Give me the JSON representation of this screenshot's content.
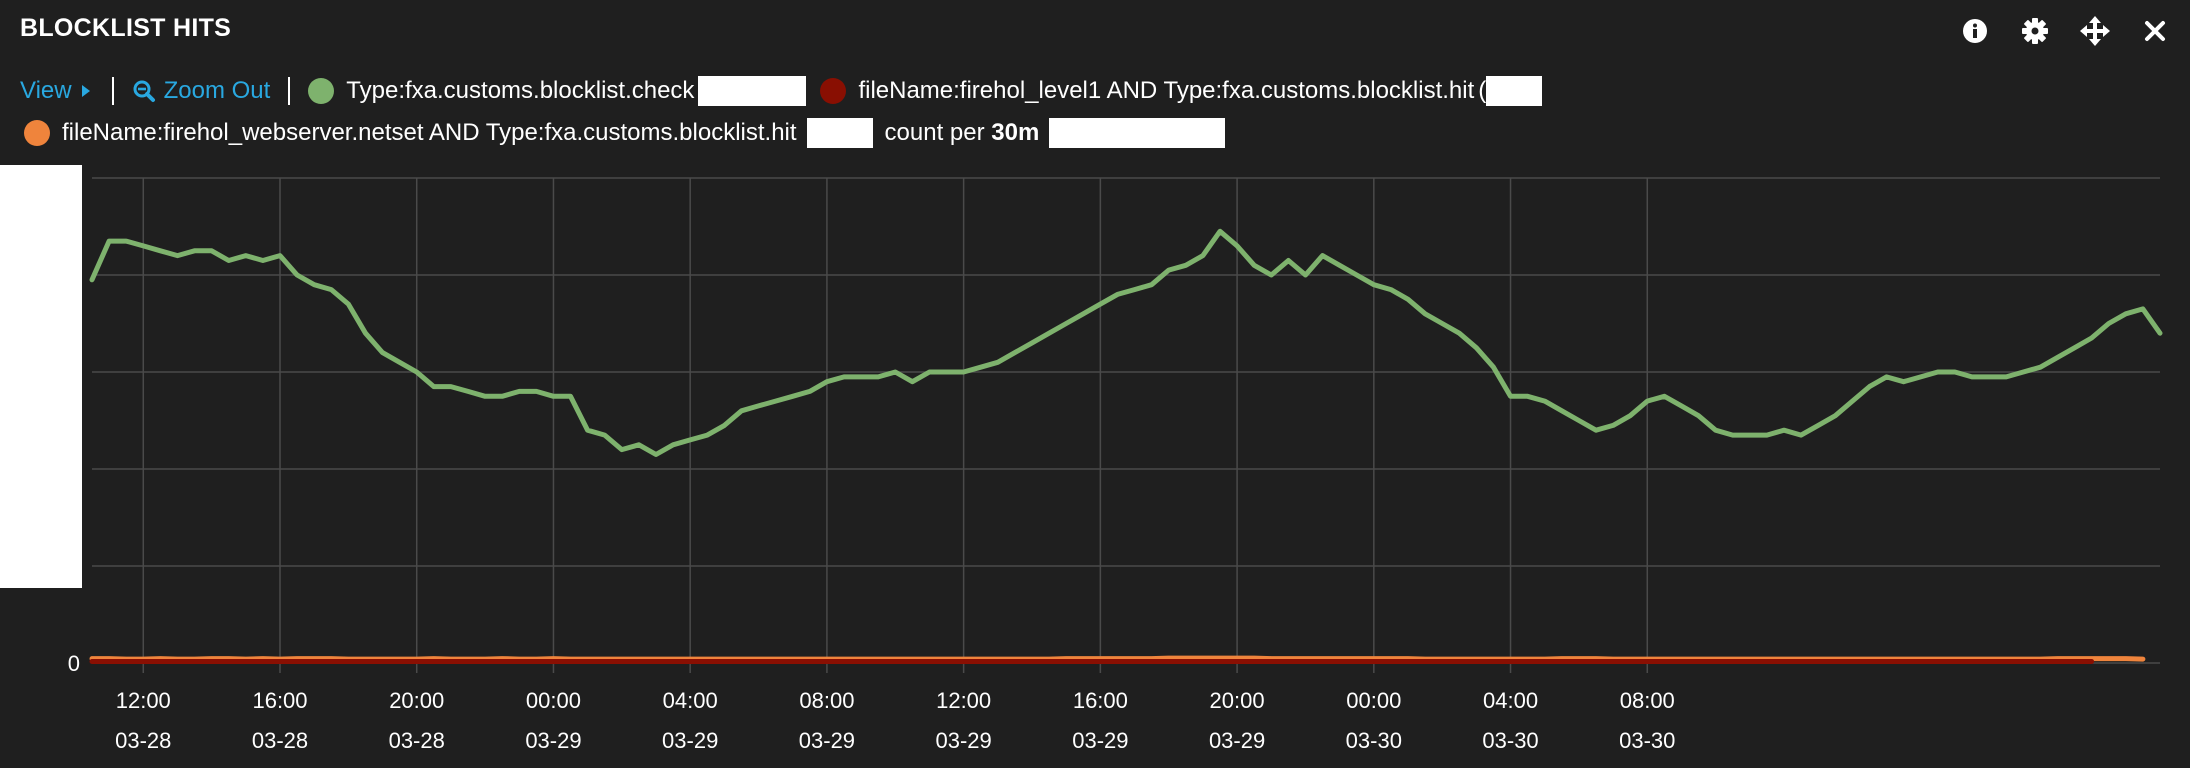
{
  "panel": {
    "title": "BLOCKLIST HITS",
    "icons": [
      "info-icon",
      "gear-icon",
      "move-icon",
      "close-icon"
    ]
  },
  "toolbar": {
    "view_label": "View",
    "zoom_out_label": "Zoom Out",
    "count_per_prefix": "count per",
    "count_per_value": "30m"
  },
  "legend": [
    {
      "label": "Type:fxa.customs.blocklist.check",
      "color": "#7eb26d"
    },
    {
      "label": "fileName:firehol_level1 AND Type:fxa.customs.blocklist.hit",
      "color": "#890f02"
    },
    {
      "label": "fileName:firehol_webserver.netset AND Type:fxa.customs.blocklist.hit",
      "color": "#ef843c"
    }
  ],
  "chart_data": {
    "type": "line",
    "x_tick_labels": [
      [
        "12:00",
        "03-28"
      ],
      [
        "16:00",
        "03-28"
      ],
      [
        "20:00",
        "03-28"
      ],
      [
        "00:00",
        "03-29"
      ],
      [
        "04:00",
        "03-29"
      ],
      [
        "08:00",
        "03-29"
      ],
      [
        "12:00",
        "03-29"
      ],
      [
        "16:00",
        "03-29"
      ],
      [
        "20:00",
        "03-29"
      ],
      [
        "00:00",
        "03-30"
      ],
      [
        "04:00",
        "03-30"
      ],
      [
        "08:00",
        "03-30"
      ]
    ],
    "x_start": "2025-03-28T10:30",
    "interval": "30m",
    "y_tick_labels": [
      "0"
    ],
    "ylim": [
      0,
      100
    ],
    "grid": true,
    "series": [
      {
        "name": "Type:fxa.customs.blocklist.check",
        "color": "#7eb26d",
        "values": [
          79,
          87,
          87,
          86,
          85,
          84,
          85,
          85,
          83,
          84,
          83,
          84,
          80,
          78,
          77,
          74,
          68,
          64,
          62,
          60,
          57,
          57,
          56,
          55,
          55,
          56,
          56,
          55,
          55,
          48,
          47,
          44,
          45,
          43,
          45,
          46,
          47,
          49,
          52,
          53,
          54,
          55,
          56,
          58,
          59,
          59,
          59,
          60,
          58,
          60,
          60,
          60,
          61,
          62,
          64,
          66,
          68,
          70,
          72,
          74,
          76,
          77,
          78,
          81,
          82,
          84,
          89,
          86,
          82,
          80,
          83,
          80,
          84,
          82,
          80,
          78,
          77,
          75,
          72,
          70,
          68,
          65,
          61,
          55,
          55,
          54,
          52,
          50,
          48,
          49,
          51,
          54,
          55,
          53,
          51,
          48,
          47,
          47,
          47,
          48,
          47,
          49,
          51,
          54,
          57,
          59,
          58,
          59,
          60,
          60,
          59,
          59,
          59,
          60,
          61,
          63,
          65,
          67,
          70,
          72,
          73,
          68
        ]
      },
      {
        "name": "fileName:firehol_level1 AND Type:fxa.customs.blocklist.hit",
        "color": "#890f02",
        "values": [
          0.3,
          0.3,
          0.3,
          0.3,
          0.3,
          0.3,
          0.3,
          0.3,
          0.3,
          0.3,
          0.3,
          0.3,
          0.3,
          0.3,
          0.3,
          0.3,
          0.3,
          0.3,
          0.3,
          0.3,
          0.3,
          0.3,
          0.3,
          0.3,
          0.3,
          0.3,
          0.3,
          0.3,
          0.3,
          0.3,
          0.3,
          0.3,
          0.3,
          0.3,
          0.3,
          0.3,
          0.3,
          0.3,
          0.3,
          0.3,
          0.3,
          0.3,
          0.3,
          0.3,
          0.3,
          0.3,
          0.3,
          0.3,
          0.3,
          0.3,
          0.3,
          0.3,
          0.3,
          0.3,
          0.3,
          0.3,
          0.3,
          0.3,
          0.3,
          0.3,
          0.3,
          0.3,
          0.3,
          0.3,
          0.3,
          0.3,
          0.3,
          0.3,
          0.3,
          0.3,
          0.3,
          0.3,
          0.3,
          0.3,
          0.3,
          0.3,
          0.3,
          0.3,
          0.3,
          0.3,
          0.3,
          0.3,
          0.3,
          0.3,
          0.3,
          0.3,
          0.3,
          0.3,
          0.3,
          0.3,
          0.3,
          0.3,
          0.3,
          0.3,
          0.3,
          0.3,
          0.3,
          0.3,
          0.3,
          0.3,
          0.3,
          0.3,
          0.3,
          0.3,
          0.3,
          0.3,
          0.3,
          0.3,
          0.3,
          0.3,
          0.3,
          0.3,
          0.3,
          0.3,
          0.3,
          0.3,
          0.3,
          0.3
        ]
      },
      {
        "name": "fileName:firehol_webserver.netset AND Type:fxa.customs.blocklist.hit",
        "color": "#ef843c",
        "values": [
          0.9,
          0.9,
          0.8,
          0.8,
          0.9,
          0.8,
          0.8,
          0.9,
          0.9,
          0.8,
          0.9,
          0.8,
          0.9,
          0.9,
          0.9,
          0.8,
          0.8,
          0.8,
          0.8,
          0.8,
          0.9,
          0.8,
          0.8,
          0.8,
          0.9,
          0.8,
          0.8,
          0.9,
          0.8,
          0.8,
          0.8,
          0.8,
          0.8,
          0.8,
          0.8,
          0.8,
          0.8,
          0.8,
          0.8,
          0.8,
          0.8,
          0.8,
          0.8,
          0.8,
          0.8,
          0.8,
          0.8,
          0.8,
          0.8,
          0.8,
          0.8,
          0.8,
          0.8,
          0.8,
          0.8,
          0.8,
          0.8,
          0.9,
          0.9,
          0.9,
          0.9,
          0.9,
          0.9,
          1.0,
          1.0,
          1.0,
          1.0,
          1.0,
          1.0,
          0.9,
          0.9,
          0.9,
          0.9,
          0.9,
          0.9,
          0.9,
          0.9,
          0.9,
          0.8,
          0.8,
          0.8,
          0.8,
          0.8,
          0.8,
          0.8,
          0.8,
          0.9,
          0.9,
          0.9,
          0.8,
          0.8,
          0.8,
          0.8,
          0.8,
          0.8,
          0.8,
          0.8,
          0.8,
          0.8,
          0.8,
          0.8,
          0.8,
          0.8,
          0.8,
          0.8,
          0.8,
          0.8,
          0.8,
          0.8,
          0.8,
          0.8,
          0.8,
          0.8,
          0.8,
          0.8,
          0.9,
          0.9,
          0.9,
          0.9,
          0.9,
          0.8
        ]
      }
    ]
  }
}
